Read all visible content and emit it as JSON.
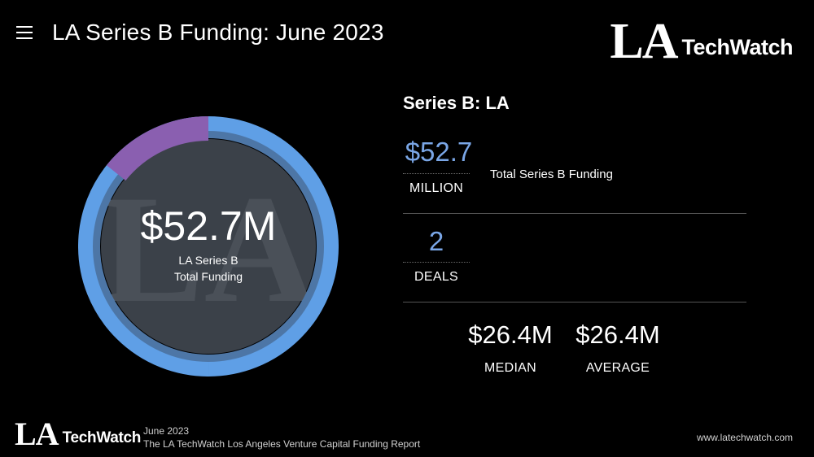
{
  "header": {
    "menu_icon": "hamburger-menu-icon",
    "title": "LA Series B Funding: June 2023"
  },
  "brand": {
    "la": "LA",
    "techwatch": "TechWatch"
  },
  "donut": {
    "center_value": "$52.7M",
    "center_line1": "LA Series B",
    "center_line2": "Total Funding",
    "watermark": "LA",
    "segments": [
      {
        "share": 0.5,
        "color": "#5f9fe6"
      },
      {
        "share": 0.5,
        "color": "#5f9fe6"
      }
    ],
    "highlight_color": "#8a5fb0",
    "inner_fill": "#3b4149"
  },
  "stats": {
    "section_title": "Series B: LA",
    "total_value": "$52.7",
    "total_unit": "MILLION",
    "total_desc": "Total Series B Funding",
    "deals_value": "2",
    "deals_unit": "DEALS",
    "median_value": "$26.4M",
    "median_label": "MEDIAN",
    "average_value": "$26.4M",
    "average_label": "AVERAGE",
    "accent_color": "#7aa6e6"
  },
  "footer": {
    "la": "LA",
    "techwatch": "TechWatch",
    "date": "June 2023",
    "report": "The LA TechWatch Los Angeles Venture Capital Funding Report",
    "url": "www.latechwatch.com"
  }
}
